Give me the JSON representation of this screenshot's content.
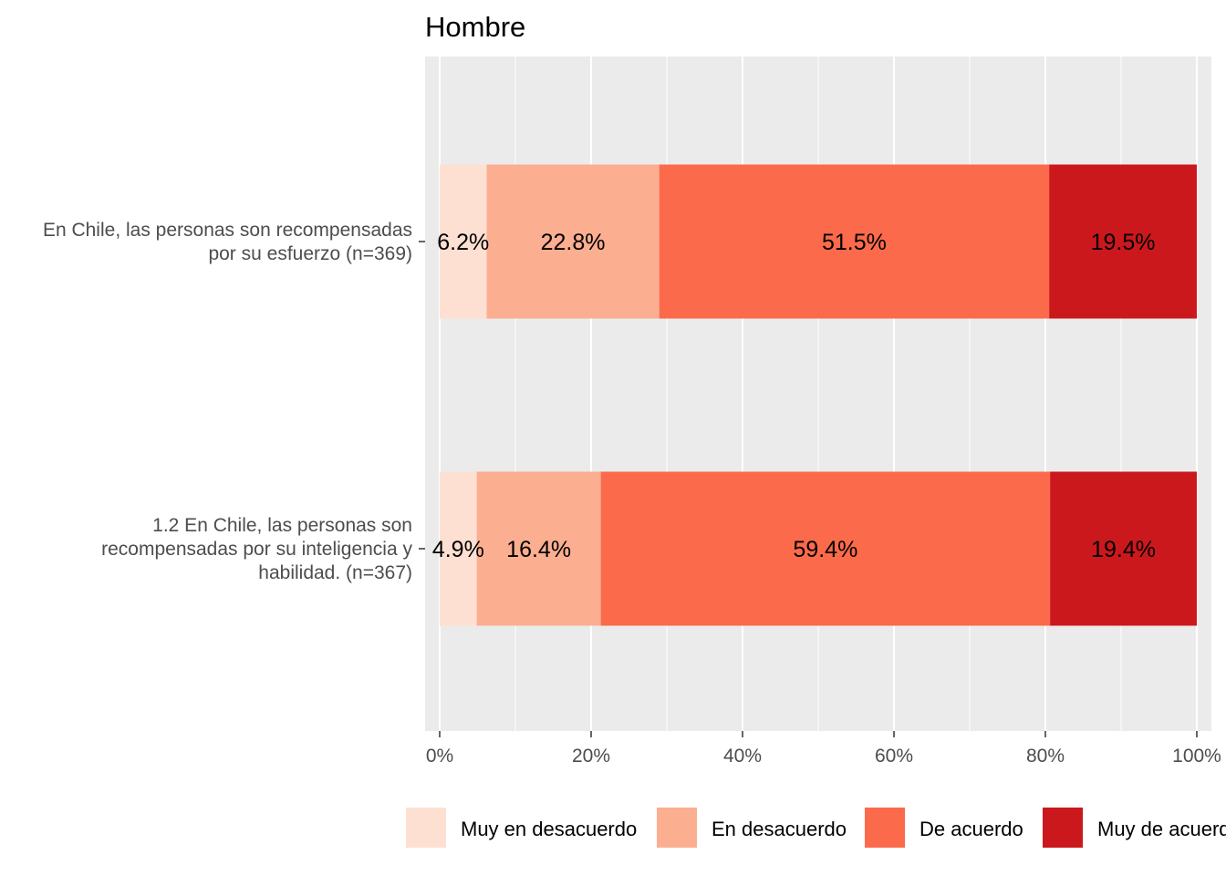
{
  "chart_data": {
    "type": "bar",
    "orientation": "horizontal",
    "stacked": true,
    "title": "Hombre",
    "categories": [
      "En Chile, las personas son recompensadas\npor su esfuerzo (n=369)",
      "1.2 En Chile, las personas son\nrecompensadas por su inteligencia y\nhabilidad. (n=367)"
    ],
    "series": [
      {
        "name": "Muy en desacuerdo",
        "color": "#fee0d2",
        "values": [
          6.2,
          4.9
        ],
        "labels": [
          "6.2%",
          "4.9%"
        ]
      },
      {
        "name": "En desacuerdo",
        "color": "#fcae91",
        "values": [
          22.8,
          16.4
        ],
        "labels": [
          "22.8%",
          "16.4%"
        ]
      },
      {
        "name": "De acuerdo",
        "color": "#fb6a4a",
        "values": [
          51.5,
          59.4
        ],
        "labels": [
          "51.5%",
          "59.4%"
        ]
      },
      {
        "name": "Muy de acuerdo",
        "color": "#cb181d",
        "values": [
          19.5,
          19.4
        ],
        "labels": [
          "19.5%",
          "19.4%"
        ]
      }
    ],
    "xlim": [
      0,
      100
    ],
    "xticks": [
      "0%",
      "20%",
      "40%",
      "60%",
      "80%",
      "100%"
    ],
    "xtick_values": [
      0,
      20,
      40,
      60,
      80,
      100
    ],
    "xlabel": "",
    "ylabel": "",
    "grid": true,
    "legend_position": "bottom",
    "panel_background": "#ebebeb"
  }
}
